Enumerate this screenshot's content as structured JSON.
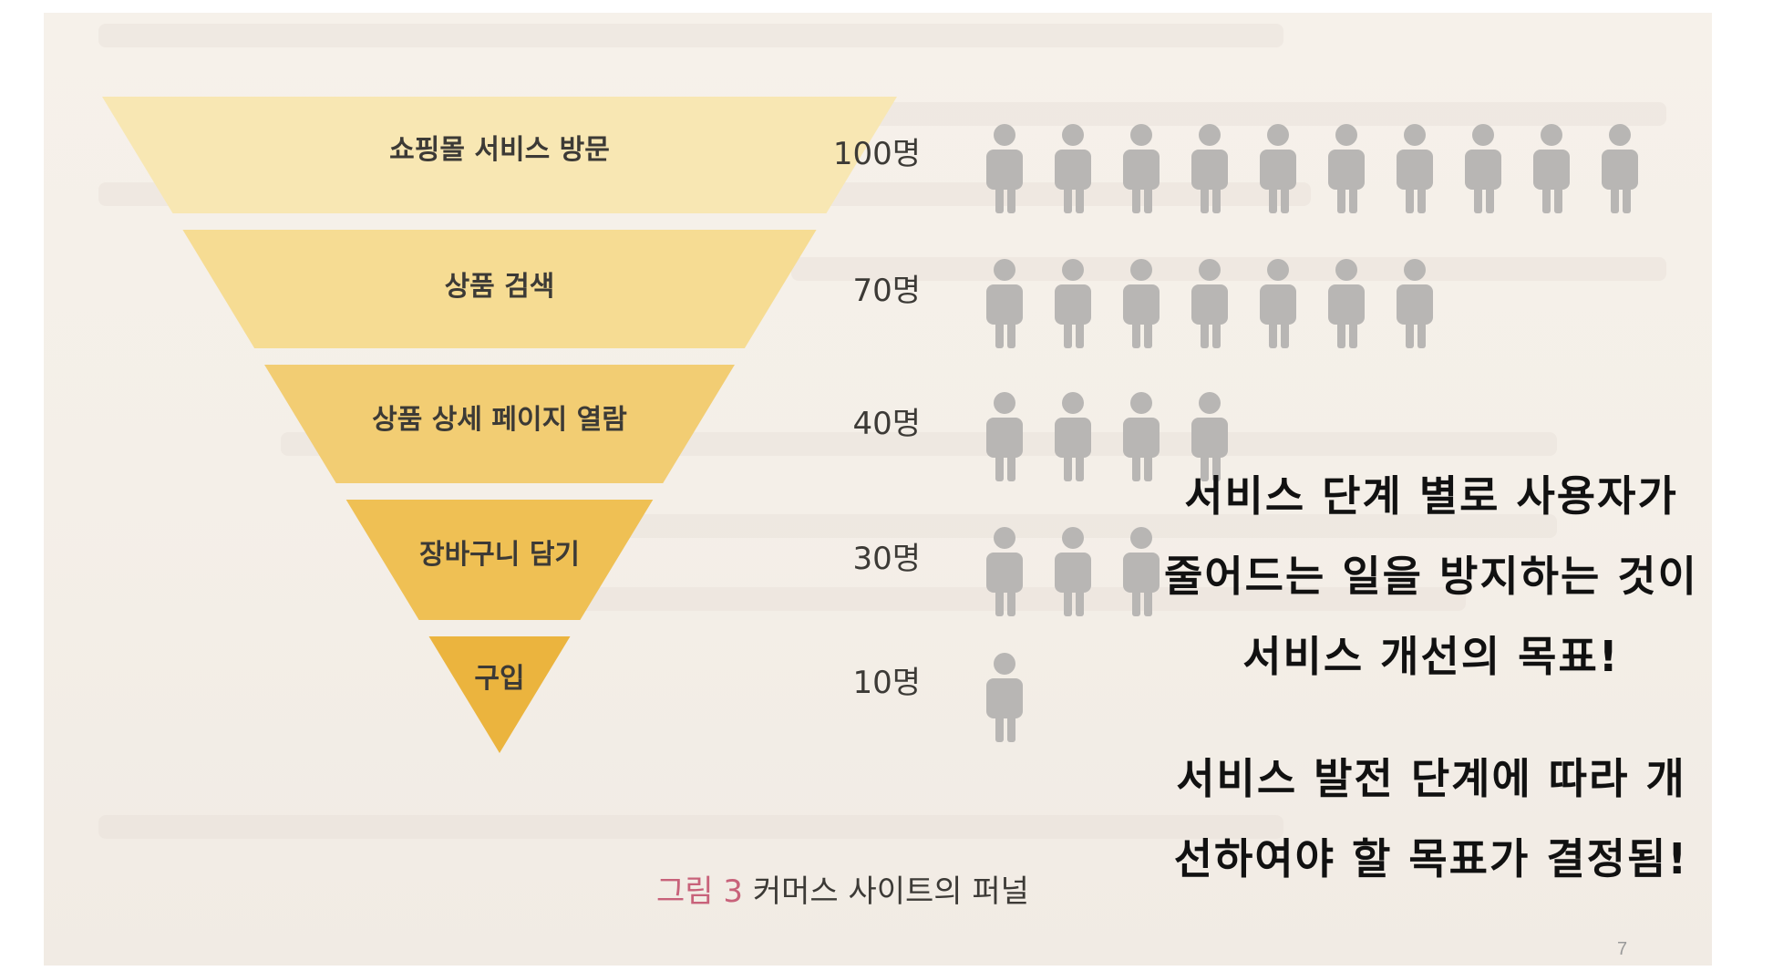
{
  "figure": {
    "caption_number": "그림 3",
    "caption_text": "커머스 사이트의 퍼널"
  },
  "funnel": [
    {
      "stage": "쇼핑몰 서비스 방문",
      "count_label": "100명",
      "users": 100
    },
    {
      "stage": "상품 검색",
      "count_label": "70명",
      "users": 70
    },
    {
      "stage": "상품 상세 페이지 열람",
      "count_label": "40명",
      "users": 40
    },
    {
      "stage": "장바구니 담기",
      "count_label": "30명",
      "users": 30
    },
    {
      "stage": "구입",
      "count_label": "10명",
      "users": 10
    }
  ],
  "people_per_icon": 10,
  "colors": {
    "funnel": [
      "#f8e7b3",
      "#f6dc93",
      "#f2cd73",
      "#efc054",
      "#ebb43e"
    ],
    "person_icon": "#b8b6b4",
    "caption_accent": "#c8627a"
  },
  "notes": {
    "goal_lines": [
      "서비스 단계 별로 사용자가",
      "줄어드는 일을 방지하는 것이",
      "서비스 개선의 목표!"
    ],
    "stage_lines": [
      "서비스 발전 단계에 따라  개",
      "선하여야 할 목표가 결정됨!"
    ]
  },
  "slide": {
    "page_number": "7"
  }
}
